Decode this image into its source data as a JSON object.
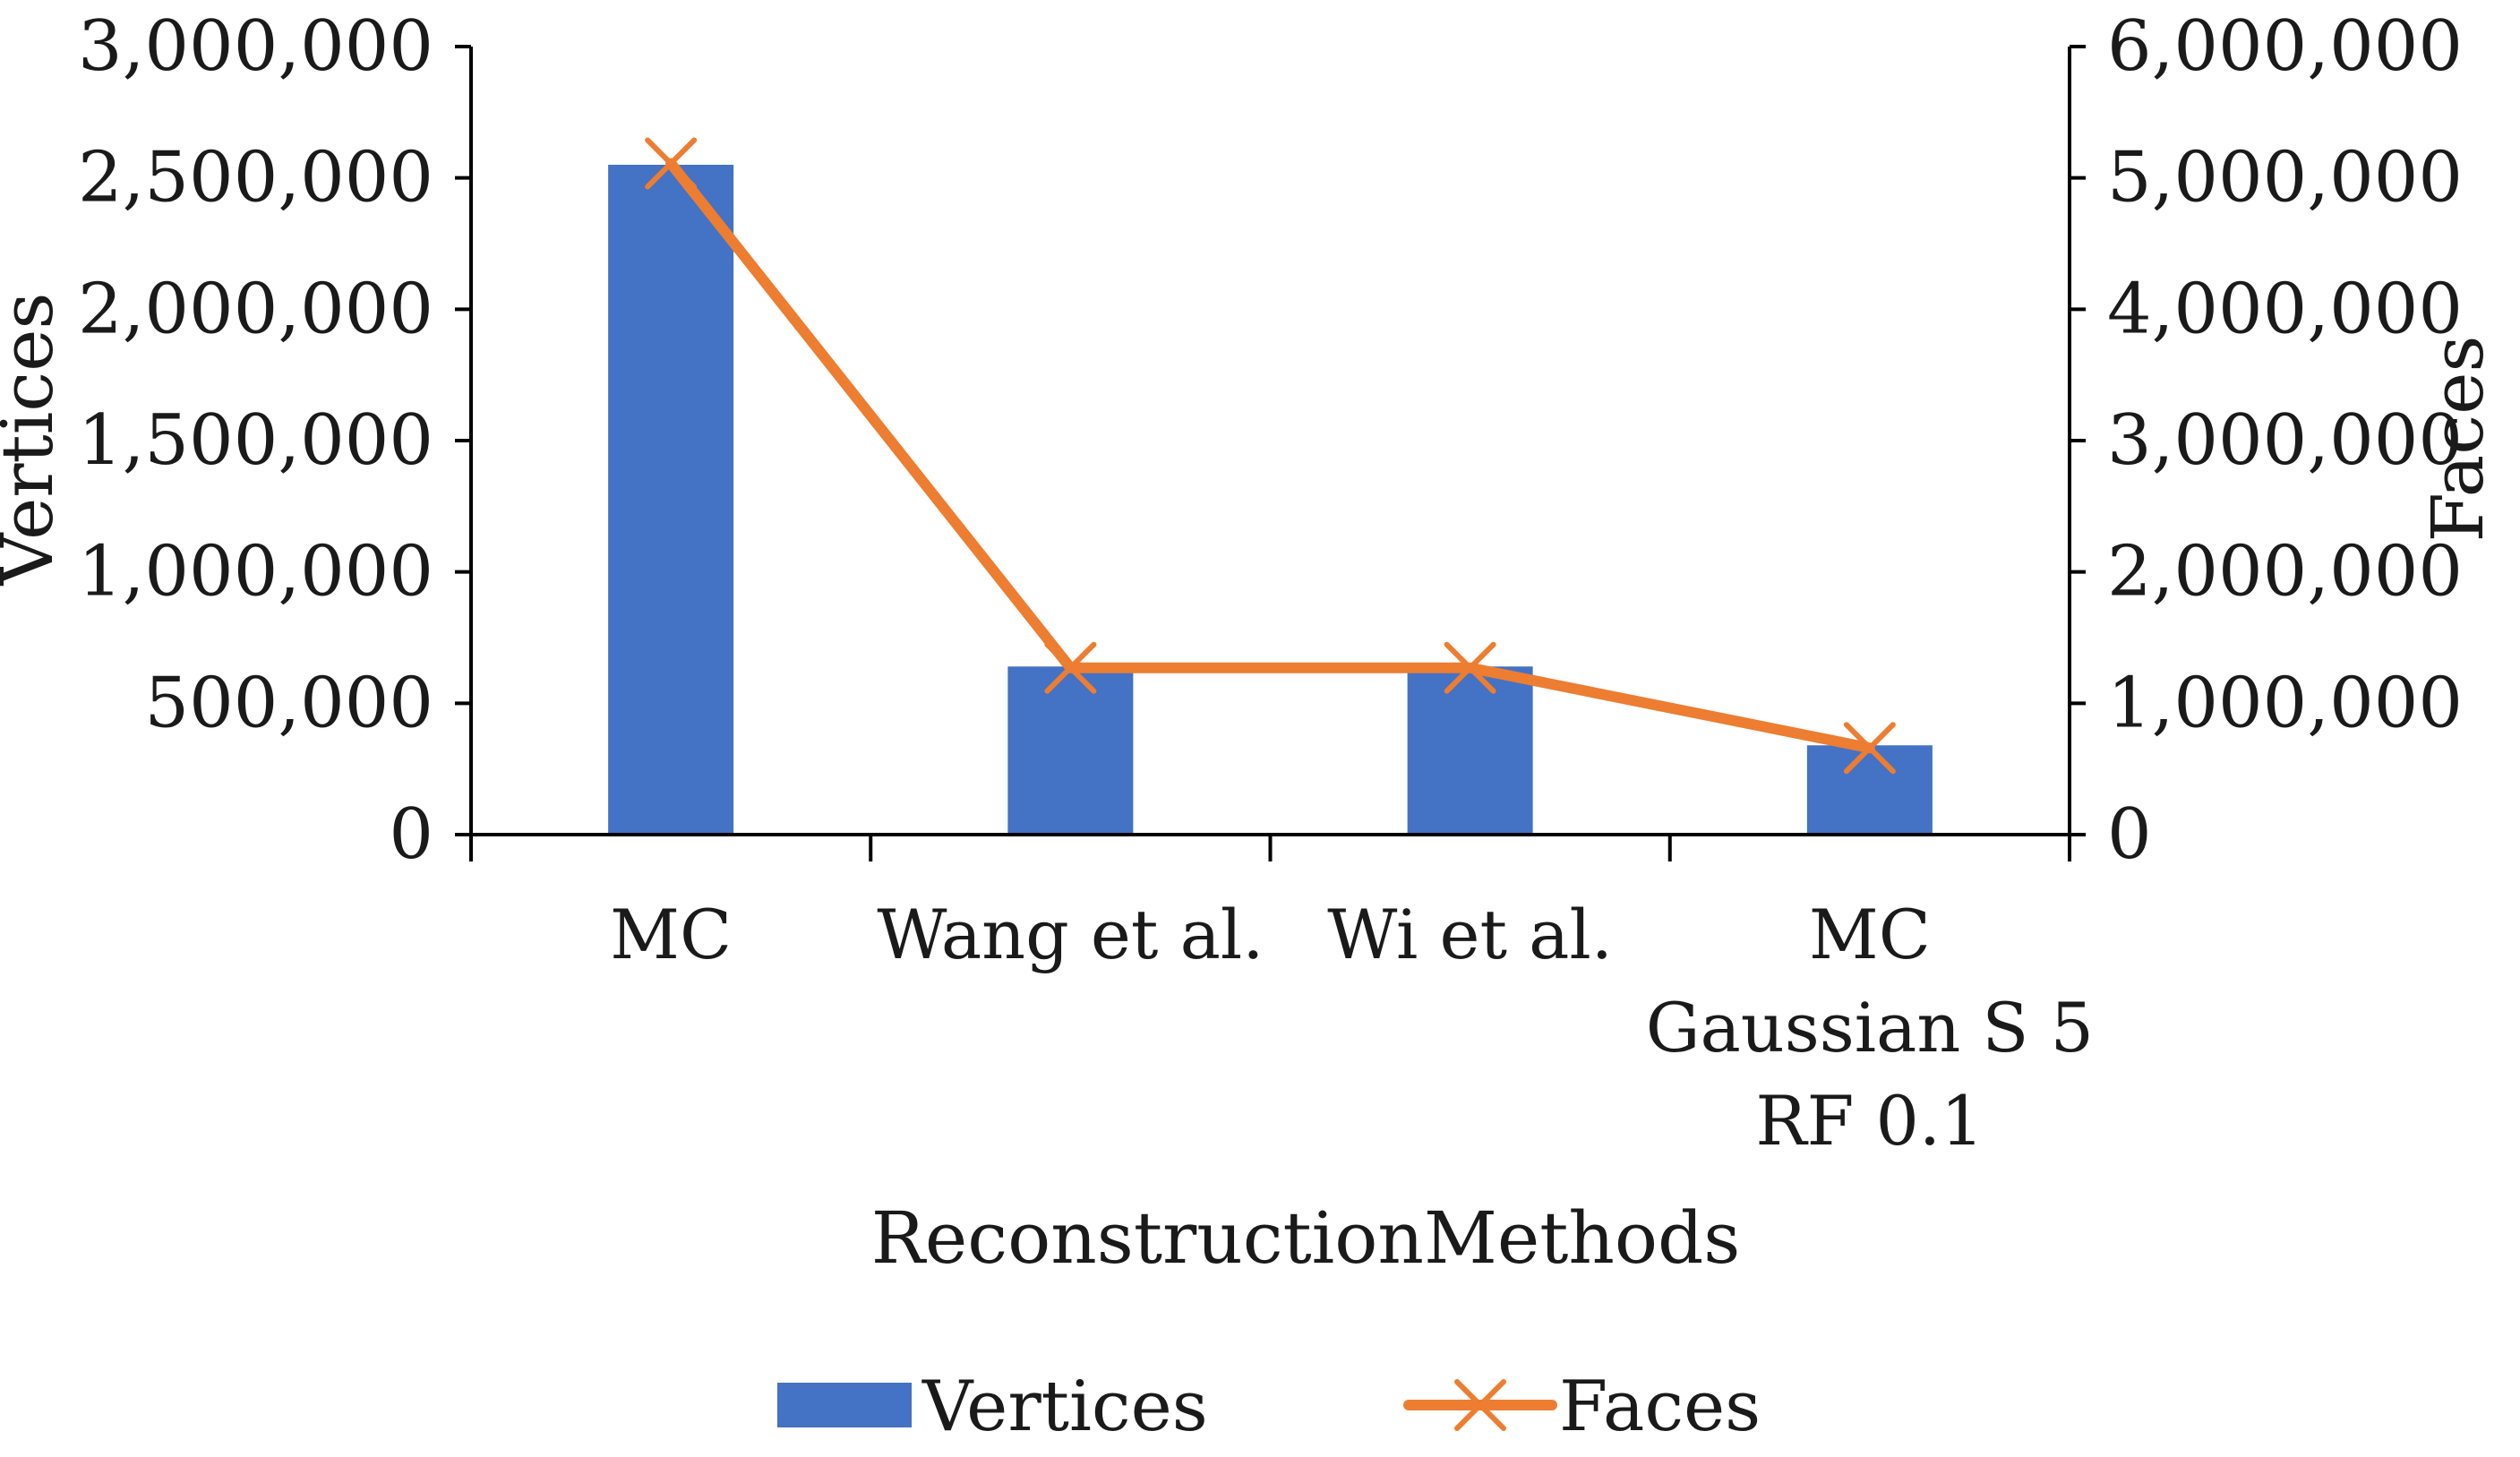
{
  "chart_data": {
    "type": "bar+line",
    "title": "",
    "categories": [
      [
        "MC"
      ],
      [
        "Wang et al."
      ],
      [
        "Wi et al."
      ],
      [
        "MC",
        "Gaussian S 5",
        "RF 0.1"
      ]
    ],
    "series": [
      {
        "name": "Vertices",
        "type": "bar",
        "axis": "left",
        "values": [
          2550000,
          640000,
          640000,
          340000
        ],
        "color": "#4472c4"
      },
      {
        "name": "Faces",
        "type": "line",
        "axis": "right",
        "marker": "x",
        "values": [
          5110000,
          1270000,
          1270000,
          660000
        ],
        "color": "#ed7d31"
      }
    ],
    "xlabel": "ReconstructionMethods",
    "ylabel_left": "Vertices",
    "ylabel_right": "Faces",
    "ylim_left": [
      0,
      3000000
    ],
    "ylim_right": [
      0,
      6000000
    ],
    "yticks_left": [
      "0",
      "500,000",
      "1,000,000",
      "1,500,000",
      "2,000,000",
      "2,500,000",
      "3,000,000"
    ],
    "yticks_right": [
      "0",
      "1,000,000",
      "2,000,000",
      "3,000,000",
      "4,000,000",
      "5,000,000",
      "6,000,000"
    ],
    "grid": false,
    "legend": {
      "position": "bottom",
      "entries": [
        "Vertices",
        "Faces"
      ]
    }
  }
}
